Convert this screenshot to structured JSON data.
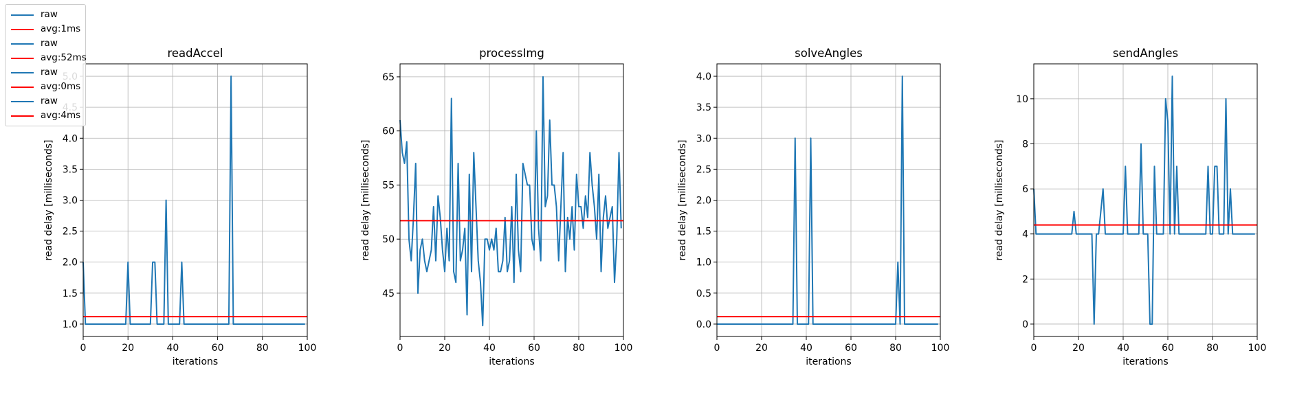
{
  "colors": {
    "raw": "#1f77b4",
    "avg": "#ff0000",
    "grid": "#b0b0b0"
  },
  "legend": {
    "location": "upper-left",
    "entries": [
      {
        "label": "raw",
        "color": "#1f77b4"
      },
      {
        "label": "avg:1ms",
        "color": "#ff0000"
      },
      {
        "label": "raw",
        "color": "#1f77b4"
      },
      {
        "label": "avg:52ms",
        "color": "#ff0000"
      },
      {
        "label": "raw",
        "color": "#1f77b4"
      },
      {
        "label": "avg:0ms",
        "color": "#ff0000"
      },
      {
        "label": "raw",
        "color": "#1f77b4"
      },
      {
        "label": "avg:4ms",
        "color": "#ff0000"
      }
    ]
  },
  "chart_data": [
    {
      "type": "line",
      "title": "readAccel",
      "xlabel": "iterations",
      "ylabel": "read delay [milliseconds]",
      "xlim": [
        0,
        100
      ],
      "ylim": [
        0.8,
        5.2
      ],
      "xticks": [
        0,
        20,
        40,
        60,
        80,
        100
      ],
      "yticks": [
        1.0,
        1.5,
        2.0,
        2.5,
        3.0,
        3.5,
        4.0,
        4.5,
        5.0
      ],
      "yticklabels": [
        "1.0",
        "1.5",
        "2.0",
        "2.5",
        "3.0",
        "3.5",
        "4.0",
        "4.5",
        "5.0"
      ],
      "grid": true,
      "average": 1.12,
      "series": [
        {
          "name": "raw",
          "x": [
            0,
            1,
            2,
            3,
            4,
            5,
            6,
            7,
            8,
            9,
            10,
            11,
            12,
            13,
            14,
            15,
            16,
            17,
            18,
            19,
            20,
            21,
            22,
            23,
            24,
            25,
            26,
            27,
            28,
            29,
            30,
            31,
            32,
            33,
            34,
            35,
            36,
            37,
            38,
            39,
            40,
            41,
            42,
            43,
            44,
            45,
            46,
            47,
            48,
            49,
            50,
            51,
            52,
            53,
            54,
            55,
            56,
            57,
            58,
            59,
            60,
            61,
            62,
            63,
            64,
            65,
            66,
            67,
            68,
            69,
            70,
            71,
            72,
            73,
            74,
            75,
            76,
            77,
            78,
            79,
            80,
            81,
            82,
            83,
            84,
            85,
            86,
            87,
            88,
            89,
            90,
            91,
            92,
            93,
            94,
            95,
            96,
            97,
            98,
            99
          ],
          "y": [
            2,
            1,
            1,
            1,
            1,
            1,
            1,
            1,
            1,
            1,
            1,
            1,
            1,
            1,
            1,
            1,
            1,
            1,
            1,
            1,
            2,
            1,
            1,
            1,
            1,
            1,
            1,
            1,
            1,
            1,
            1,
            2,
            2,
            1,
            1,
            1,
            1,
            3,
            1,
            1,
            1,
            1,
            1,
            1,
            2,
            1,
            1,
            1,
            1,
            1,
            1,
            1,
            1,
            1,
            1,
            1,
            1,
            1,
            1,
            1,
            1,
            1,
            1,
            1,
            1,
            1,
            5,
            1,
            1,
            1,
            1,
            1,
            1,
            1,
            1,
            1,
            1,
            1,
            1,
            1,
            1,
            1,
            1,
            1,
            1,
            1,
            1,
            1,
            1,
            1,
            1,
            1,
            1,
            1,
            1,
            1,
            1,
            1,
            1,
            1
          ]
        }
      ]
    },
    {
      "type": "line",
      "title": "processImg",
      "xlabel": "iterations",
      "ylabel": "read delay [milliseconds]",
      "xlim": [
        0,
        100
      ],
      "ylim": [
        41.0,
        66.2
      ],
      "xticks": [
        0,
        20,
        40,
        60,
        80,
        100
      ],
      "yticks": [
        45,
        50,
        55,
        60,
        65
      ],
      "yticklabels": [
        "45",
        "50",
        "55",
        "60",
        "65"
      ],
      "grid": true,
      "average": 51.7,
      "series": [
        {
          "name": "raw",
          "x": [
            0,
            1,
            2,
            3,
            4,
            5,
            6,
            7,
            8,
            9,
            10,
            11,
            12,
            13,
            14,
            15,
            16,
            17,
            18,
            19,
            20,
            21,
            22,
            23,
            24,
            25,
            26,
            27,
            28,
            29,
            30,
            31,
            32,
            33,
            34,
            35,
            36,
            37,
            38,
            39,
            40,
            41,
            42,
            43,
            44,
            45,
            46,
            47,
            48,
            49,
            50,
            51,
            52,
            53,
            54,
            55,
            56,
            57,
            58,
            59,
            60,
            61,
            62,
            63,
            64,
            65,
            66,
            67,
            68,
            69,
            70,
            71,
            72,
            73,
            74,
            75,
            76,
            77,
            78,
            79,
            80,
            81,
            82,
            83,
            84,
            85,
            86,
            87,
            88,
            89,
            90,
            91,
            92,
            93,
            94,
            95,
            96,
            97,
            98,
            99
          ],
          "y": [
            61,
            58,
            57,
            59,
            50,
            48,
            52,
            57,
            45,
            49,
            50,
            48,
            47,
            48,
            49,
            53,
            48,
            54,
            52,
            49,
            47,
            51,
            48,
            63,
            47,
            46,
            57,
            48,
            49,
            51,
            43,
            56,
            47,
            58,
            53,
            48,
            46,
            42,
            50,
            50,
            49,
            50,
            49,
            51,
            47,
            47,
            48,
            52,
            47,
            48,
            53,
            46,
            56,
            49,
            47,
            57,
            56,
            55,
            55,
            50,
            49,
            60,
            51,
            48,
            65,
            53,
            54,
            61,
            55,
            55,
            53,
            48,
            53,
            58,
            47,
            52,
            50,
            53,
            49,
            56,
            53,
            53,
            51,
            54,
            52,
            58,
            55,
            53,
            50,
            56,
            47,
            52,
            54,
            51,
            52,
            53,
            46,
            50,
            58,
            51
          ]
        }
      ]
    },
    {
      "type": "line",
      "title": "solveAngles",
      "xlabel": "iterations",
      "ylabel": "read delay [milliseconds]",
      "xlim": [
        0,
        100
      ],
      "ylim": [
        -0.2,
        4.2
      ],
      "xticks": [
        0,
        20,
        40,
        60,
        80,
        100
      ],
      "yticks": [
        0.0,
        0.5,
        1.0,
        1.5,
        2.0,
        2.5,
        3.0,
        3.5,
        4.0
      ],
      "yticklabels": [
        "0.0",
        "0.5",
        "1.0",
        "1.5",
        "2.0",
        "2.5",
        "3.0",
        "3.5",
        "4.0"
      ],
      "grid": true,
      "average": 0.12,
      "series": [
        {
          "name": "raw",
          "x": [
            0,
            1,
            2,
            3,
            4,
            5,
            6,
            7,
            8,
            9,
            10,
            11,
            12,
            13,
            14,
            15,
            16,
            17,
            18,
            19,
            20,
            21,
            22,
            23,
            24,
            25,
            26,
            27,
            28,
            29,
            30,
            31,
            32,
            33,
            34,
            35,
            36,
            37,
            38,
            39,
            40,
            41,
            42,
            43,
            44,
            45,
            46,
            47,
            48,
            49,
            50,
            51,
            52,
            53,
            54,
            55,
            56,
            57,
            58,
            59,
            60,
            61,
            62,
            63,
            64,
            65,
            66,
            67,
            68,
            69,
            70,
            71,
            72,
            73,
            74,
            75,
            76,
            77,
            78,
            79,
            80,
            81,
            82,
            83,
            84,
            85,
            86,
            87,
            88,
            89,
            90,
            91,
            92,
            93,
            94,
            95,
            96,
            97,
            98,
            99
          ],
          "y": [
            0,
            0,
            0,
            0,
            0,
            0,
            0,
            0,
            0,
            0,
            0,
            0,
            0,
            0,
            0,
            0,
            0,
            0,
            0,
            0,
            0,
            0,
            0,
            0,
            0,
            0,
            0,
            0,
            0,
            0,
            0,
            0,
            0,
            0,
            0,
            3,
            0,
            0,
            0,
            0,
            0,
            0,
            3,
            0,
            0,
            0,
            0,
            0,
            0,
            0,
            0,
            0,
            0,
            0,
            0,
            0,
            0,
            0,
            0,
            0,
            0,
            0,
            0,
            0,
            0,
            0,
            0,
            0,
            0,
            0,
            0,
            0,
            0,
            0,
            0,
            0,
            0,
            0,
            0,
            0,
            0,
            1,
            0,
            4,
            0,
            0,
            0,
            0,
            0,
            0,
            0,
            0,
            0,
            0,
            0,
            0,
            0,
            0,
            0,
            0
          ]
        }
      ]
    },
    {
      "type": "line",
      "title": "sendAngles",
      "xlabel": "iterations",
      "ylabel": "read delay [milliseconds]",
      "xlim": [
        0,
        100
      ],
      "ylim": [
        -0.55,
        11.55
      ],
      "xticks": [
        0,
        20,
        40,
        60,
        80,
        100
      ],
      "yticks": [
        0,
        2,
        4,
        6,
        8,
        10
      ],
      "yticklabels": [
        "0",
        "2",
        "4",
        "6",
        "8",
        "10"
      ],
      "grid": true,
      "average": 4.4,
      "series": [
        {
          "name": "raw",
          "x": [
            0,
            1,
            2,
            3,
            4,
            5,
            6,
            7,
            8,
            9,
            10,
            11,
            12,
            13,
            14,
            15,
            16,
            17,
            18,
            19,
            20,
            21,
            22,
            23,
            24,
            25,
            26,
            27,
            28,
            29,
            30,
            31,
            32,
            33,
            34,
            35,
            36,
            37,
            38,
            39,
            40,
            41,
            42,
            43,
            44,
            45,
            46,
            47,
            48,
            49,
            50,
            51,
            52,
            53,
            54,
            55,
            56,
            57,
            58,
            59,
            60,
            61,
            62,
            63,
            64,
            65,
            66,
            67,
            68,
            69,
            70,
            71,
            72,
            73,
            74,
            75,
            76,
            77,
            78,
            79,
            80,
            81,
            82,
            83,
            84,
            85,
            86,
            87,
            88,
            89,
            90,
            91,
            92,
            93,
            94,
            95,
            96,
            97,
            98,
            99
          ],
          "y": [
            6,
            4,
            4,
            4,
            4,
            4,
            4,
            4,
            4,
            4,
            4,
            4,
            4,
            4,
            4,
            4,
            4,
            4,
            5,
            4,
            4,
            4,
            4,
            4,
            4,
            4,
            4,
            0,
            4,
            4,
            5,
            6,
            4,
            4,
            4,
            4,
            4,
            4,
            4,
            4,
            4,
            7,
            4,
            4,
            4,
            4,
            4,
            4,
            8,
            4,
            4,
            4,
            0,
            0,
            7,
            4,
            4,
            4,
            4,
            10,
            9,
            4,
            11,
            4,
            7,
            4,
            4,
            4,
            4,
            4,
            4,
            4,
            4,
            4,
            4,
            4,
            4,
            4,
            7,
            4,
            4,
            7,
            7,
            4,
            4,
            4,
            10,
            4,
            6,
            4,
            4,
            4,
            4,
            4,
            4,
            4,
            4,
            4,
            4,
            4
          ]
        }
      ]
    }
  ]
}
